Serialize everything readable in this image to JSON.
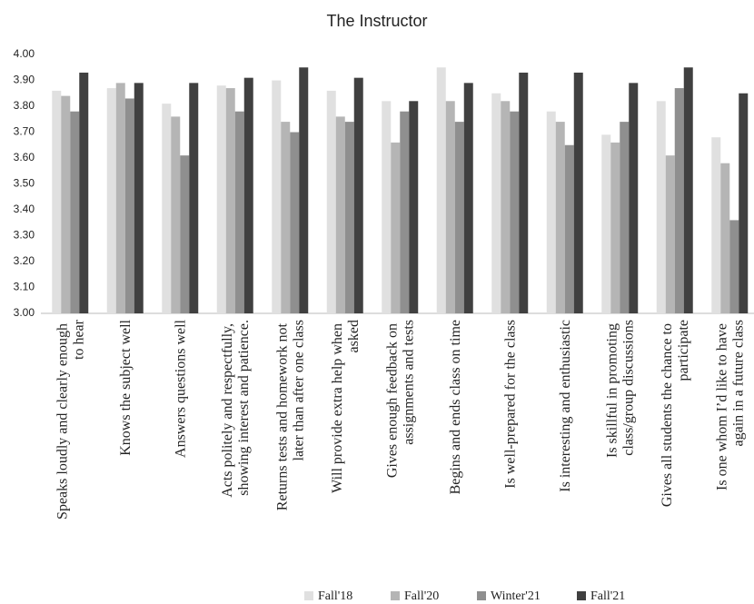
{
  "chart_data": {
    "type": "bar",
    "title": "The Instructor",
    "categories": [
      "Speaks loudly and clearly enough to hear",
      "Knows the subject well",
      "Answers questions well",
      "Acts politely and respectfully, showing interest and patience.",
      "Returns tests and homework not later than after one class",
      "Will provide extra help when asked",
      "Gives enough feedback on assignments and tests",
      "Begins and ends class on time",
      "Is well-prepared for the class",
      "Is interesting and enthusiastic",
      "Is skillful in promoting class/group discussions",
      "Gives all students the chance to participate",
      "Is one whom I’d like to have again in a future class"
    ],
    "series": [
      {
        "name": "Fall'18",
        "color": "#e0e0e0",
        "values": [
          3.86,
          3.87,
          3.81,
          3.88,
          3.9,
          3.86,
          3.82,
          3.95,
          3.85,
          3.78,
          3.69,
          3.82,
          3.68
        ]
      },
      {
        "name": "Fall'20",
        "color": "#b5b5b5",
        "values": [
          3.84,
          3.89,
          3.76,
          3.87,
          3.74,
          3.76,
          3.66,
          3.82,
          3.82,
          3.74,
          3.66,
          3.61,
          3.58
        ]
      },
      {
        "name": "Winter'21",
        "color": "#8f8f8f",
        "values": [
          3.78,
          3.83,
          3.61,
          3.78,
          3.7,
          3.74,
          3.78,
          3.74,
          3.78,
          3.65,
          3.74,
          3.87,
          3.36
        ]
      },
      {
        "name": "Fall'21",
        "color": "#404040",
        "values": [
          3.93,
          3.89,
          3.89,
          3.91,
          3.95,
          3.91,
          3.82,
          3.89,
          3.93,
          3.93,
          3.89,
          3.95,
          3.85
        ]
      }
    ],
    "ylim": [
      3,
      4
    ],
    "yticks": [
      {
        "value": 3,
        "label": "3.00"
      },
      {
        "value": 3.1,
        "label": "3.10"
      },
      {
        "value": 3.2,
        "label": "3.20"
      },
      {
        "value": 3.3,
        "label": "3.30"
      },
      {
        "value": 3.4,
        "label": "3.40"
      },
      {
        "value": 3.5,
        "label": "3.50"
      },
      {
        "value": 3.6,
        "label": "3.60"
      },
      {
        "value": 3.7,
        "label": "3.70"
      },
      {
        "value": 3.8,
        "label": "3.80"
      },
      {
        "value": 3.9,
        "label": "3.90"
      },
      {
        "value": 4,
        "label": "4.00"
      }
    ],
    "grid": false
  }
}
